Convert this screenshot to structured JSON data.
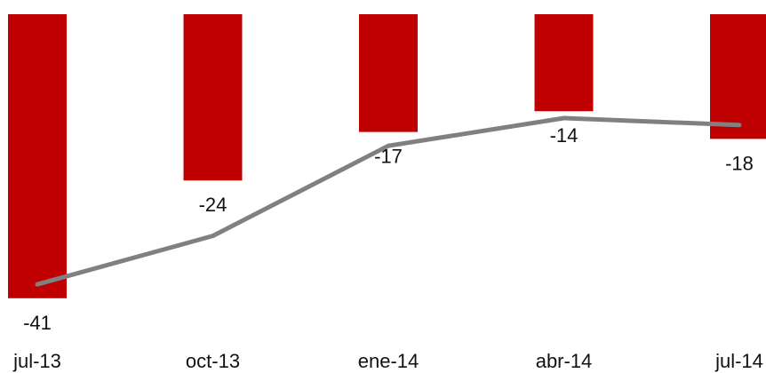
{
  "chart_data": {
    "type": "bar",
    "categories": [
      "jul-13",
      "oct-13",
      "ene-14",
      "abr-14",
      "jul-14"
    ],
    "series": [
      {
        "type": "bar",
        "values": [
          -41,
          -24,
          -17,
          -14,
          -18
        ],
        "color": "#c00000",
        "data_labels": [
          "-41",
          "-24",
          "-17",
          "-14",
          "-18"
        ]
      },
      {
        "type": "line",
        "values": [
          -39,
          -32,
          -19,
          -15,
          -16
        ],
        "color": "#808080"
      }
    ],
    "title": "",
    "xlabel": "",
    "ylabel": "",
    "ylim": [
      -42,
      0
    ],
    "grid": false,
    "legend": "none"
  }
}
